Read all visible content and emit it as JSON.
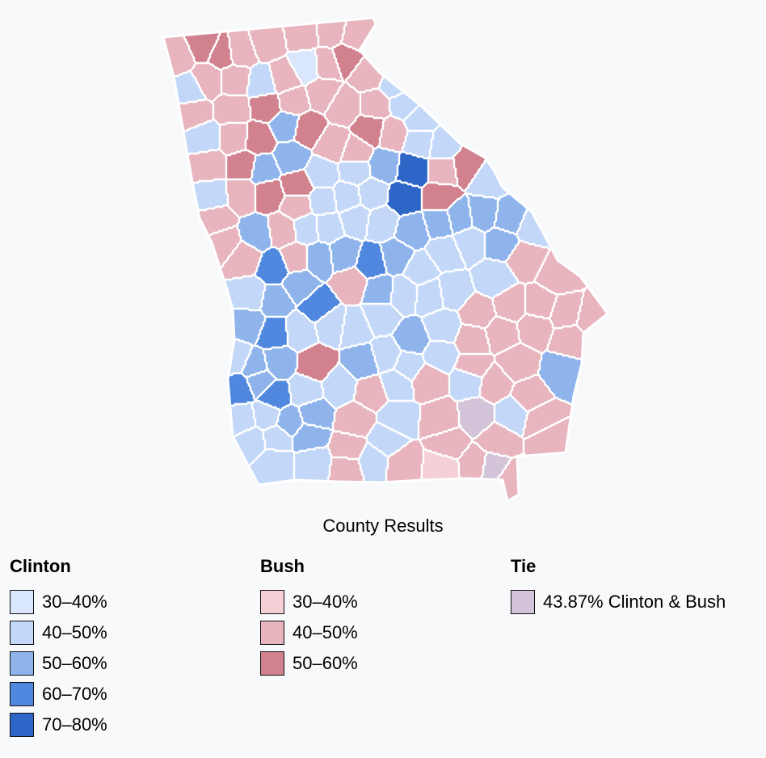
{
  "caption": "County Results",
  "colors": {
    "c1": "#d9e6fb",
    "c2": "#c3d8f8",
    "c3": "#8fb4ec",
    "c4": "#4f88de",
    "c5": "#2d66c6",
    "b1": "#f6d0d7",
    "b2": "#e8b5bf",
    "b3": "#d2828f",
    "tie": "#d3c4d9"
  },
  "legend": {
    "clinton": {
      "title": "Clinton",
      "items": [
        {
          "label": "30–40%",
          "color": "#d9e6fb"
        },
        {
          "label": "40–50%",
          "color": "#c3d8f8"
        },
        {
          "label": "50–60%",
          "color": "#8fb4ec"
        },
        {
          "label": "60–70%",
          "color": "#4f88de"
        },
        {
          "label": "70–80%",
          "color": "#2d66c6"
        }
      ]
    },
    "bush": {
      "title": "Bush",
      "items": [
        {
          "label": "30–40%",
          "color": "#f6d0d7"
        },
        {
          "label": "40–50%",
          "color": "#e8b5bf"
        },
        {
          "label": "50–60%",
          "color": "#d2828f"
        }
      ]
    },
    "tie": {
      "title": "Tie",
      "items": [
        {
          "label": "43.87% Clinton & Bush",
          "color": "#d3c4d9"
        }
      ]
    }
  }
}
